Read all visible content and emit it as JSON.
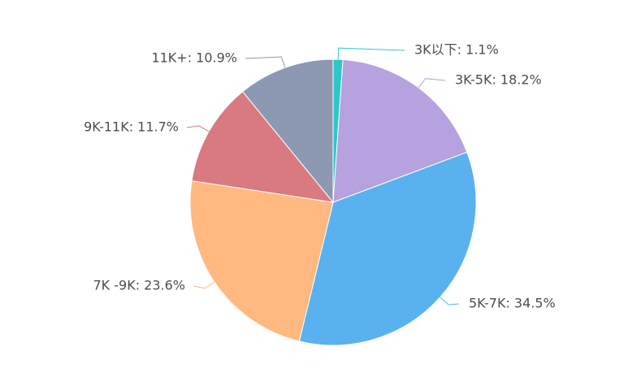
{
  "chart_data": {
    "type": "pie",
    "title": "",
    "slices": [
      {
        "label": "3K以下",
        "value": 1.1,
        "display": "3K以下: 1.1%",
        "color": "#2ec7c9"
      },
      {
        "label": "3K-5K",
        "value": 18.2,
        "display": "3K-5K: 18.2%",
        "color": "#b6a2de"
      },
      {
        "label": "5K-7K",
        "value": 34.5,
        "display": "5K-7K: 34.5%",
        "color": "#5ab1ef"
      },
      {
        "label": "7K -9K",
        "value": 23.6,
        "display": "7K -9K: 23.6%",
        "color": "#ffb980"
      },
      {
        "label": "9K-11K",
        "value": 11.7,
        "display": "9K-11K: 11.7%",
        "color": "#d87a80"
      },
      {
        "label": "11K+",
        "value": 10.9,
        "display": "11K+: 10.9%",
        "color": "#8d98b3"
      }
    ],
    "start_angle": "top",
    "direction": "clockwise",
    "legend": "none"
  }
}
